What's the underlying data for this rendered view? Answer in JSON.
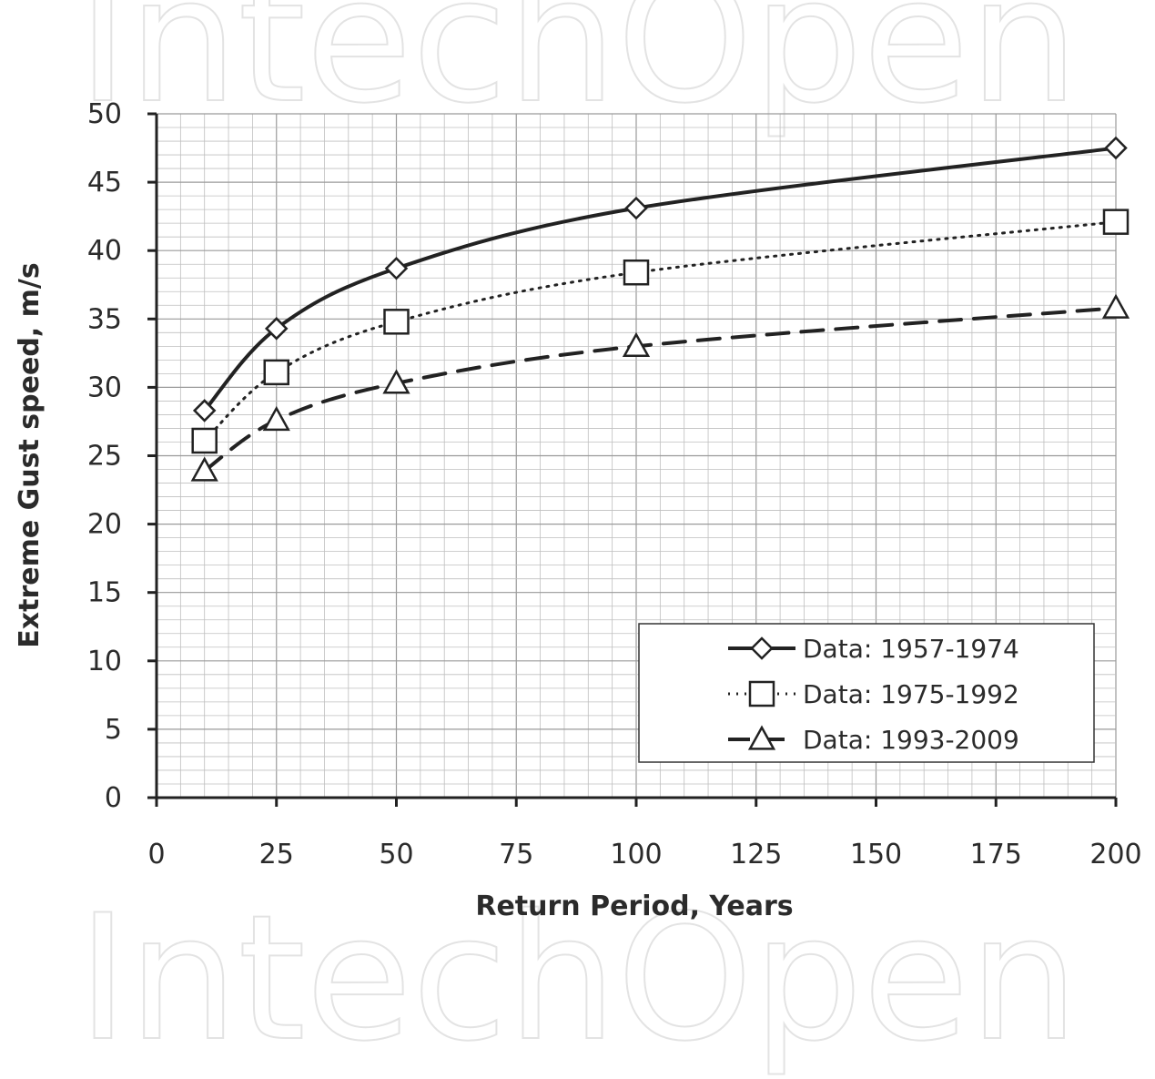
{
  "watermark": "IntechOpen",
  "chart_data": {
    "type": "line",
    "title": "",
    "xlabel": "Return Period, Years",
    "ylabel": "Extreme  Gust speed, m/s",
    "xlim": [
      0,
      200
    ],
    "ylim": [
      0,
      50
    ],
    "x_ticks": [
      "0",
      "25",
      "50",
      "75",
      "100",
      "125",
      "150",
      "175",
      "200"
    ],
    "y_ticks": [
      "0",
      "5",
      "10",
      "15",
      "20",
      "25",
      "30",
      "35",
      "40",
      "45",
      "50"
    ],
    "grid": true,
    "legend_position": "bottom-right",
    "x": [
      10,
      25,
      50,
      100,
      200
    ],
    "series": [
      {
        "name": "Data: 1957-1974",
        "marker": "diamond",
        "line_style": "solid",
        "values": [
          28.3,
          34.3,
          38.7,
          43.1,
          47.5
        ]
      },
      {
        "name": "Data: 1975-1992",
        "marker": "square",
        "line_style": "dotted",
        "values": [
          26.1,
          31.1,
          34.8,
          38.4,
          42.1
        ]
      },
      {
        "name": "Data: 1993-2009",
        "marker": "triangle",
        "line_style": "dashed",
        "values": [
          23.9,
          27.6,
          30.3,
          33.0,
          35.8
        ]
      }
    ],
    "colors": {
      "line": "#222222",
      "grid": "#bfbfbf",
      "axis": "#222222"
    }
  }
}
